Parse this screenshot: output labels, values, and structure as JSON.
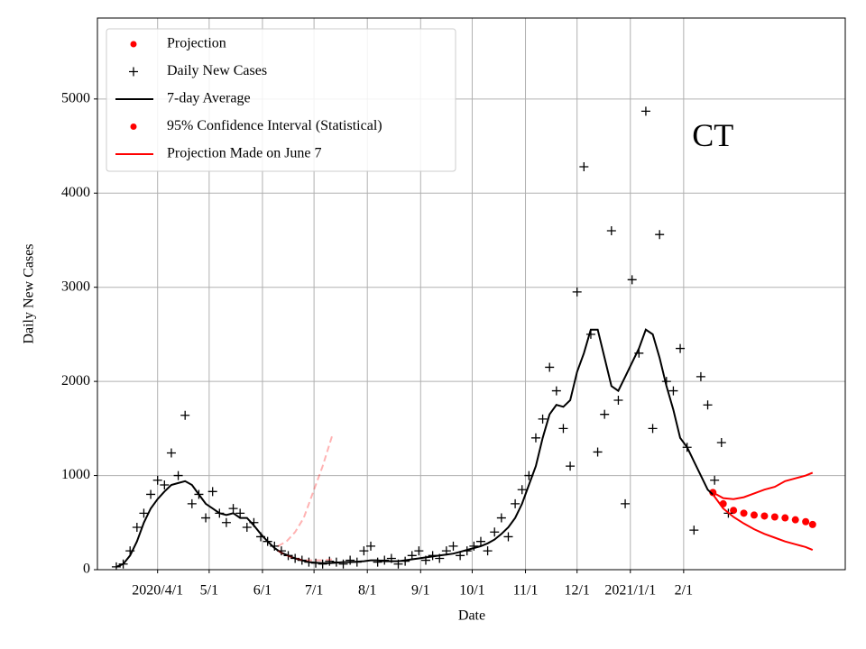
{
  "chart_data": {
    "type": "line",
    "xlabel": "Date",
    "ylabel": "Daily New Cases",
    "annotation": {
      "text": "CT",
      "x": "2021-02-18",
      "y": 4580
    },
    "xlim": [
      "2020-02-26",
      "2021-05-06"
    ],
    "ylim": [
      0,
      5860
    ],
    "yticks": [
      0,
      1000,
      2000,
      3000,
      4000,
      5000
    ],
    "xticks": [
      {
        "value": "2020-04-01",
        "label": "2020/4/1"
      },
      {
        "value": "2020-05-01",
        "label": "5/1"
      },
      {
        "value": "2020-06-01",
        "label": "6/1"
      },
      {
        "value": "2020-07-01",
        "label": "7/1"
      },
      {
        "value": "2020-08-01",
        "label": "8/1"
      },
      {
        "value": "2020-09-01",
        "label": "9/1"
      },
      {
        "value": "2020-10-01",
        "label": "10/1"
      },
      {
        "value": "2020-11-01",
        "label": "11/1"
      },
      {
        "value": "2020-12-01",
        "label": "12/1"
      },
      {
        "value": "2021-01-01",
        "label": "2021/1/1"
      },
      {
        "value": "2021-02-01",
        "label": "2/1"
      }
    ],
    "grid": true,
    "legend": "upper left",
    "series": [
      {
        "name": "Projection",
        "color": "#ff0000",
        "marker": "dot",
        "x": [
          "2021-02-18",
          "2021-02-24",
          "2021-03-02",
          "2021-03-08",
          "2021-03-14",
          "2021-03-20",
          "2021-03-26",
          "2021-04-01",
          "2021-04-07",
          "2021-04-13",
          "2021-04-17"
        ],
        "values": [
          820,
          700,
          630,
          600,
          580,
          570,
          560,
          550,
          530,
          510,
          480
        ]
      },
      {
        "name": "Daily New Cases",
        "color": "#000000",
        "marker": "plus",
        "x": [
          "2020-03-08",
          "2020-03-12",
          "2020-03-16",
          "2020-03-20",
          "2020-03-24",
          "2020-03-28",
          "2020-04-01",
          "2020-04-05",
          "2020-04-09",
          "2020-04-13",
          "2020-04-17",
          "2020-04-21",
          "2020-04-25",
          "2020-04-29",
          "2020-05-03",
          "2020-05-07",
          "2020-05-11",
          "2020-05-15",
          "2020-05-19",
          "2020-05-23",
          "2020-05-27",
          "2020-05-31",
          "2020-06-04",
          "2020-06-08",
          "2020-06-12",
          "2020-06-16",
          "2020-06-20",
          "2020-06-24",
          "2020-06-28",
          "2020-07-02",
          "2020-07-06",
          "2020-07-10",
          "2020-07-14",
          "2020-07-18",
          "2020-07-22",
          "2020-07-26",
          "2020-07-30",
          "2020-08-03",
          "2020-08-07",
          "2020-08-11",
          "2020-08-15",
          "2020-08-19",
          "2020-08-23",
          "2020-08-27",
          "2020-08-31",
          "2020-09-04",
          "2020-09-08",
          "2020-09-12",
          "2020-09-16",
          "2020-09-20",
          "2020-09-24",
          "2020-09-28",
          "2020-10-02",
          "2020-10-06",
          "2020-10-10",
          "2020-10-14",
          "2020-10-18",
          "2020-10-22",
          "2020-10-26",
          "2020-10-30",
          "2020-11-03",
          "2020-11-07",
          "2020-11-11",
          "2020-11-15",
          "2020-11-19",
          "2020-11-23",
          "2020-11-27",
          "2020-12-01",
          "2020-12-05",
          "2020-12-09",
          "2020-12-13",
          "2020-12-17",
          "2020-12-21",
          "2020-12-25",
          "2020-12-29",
          "2021-01-02",
          "2021-01-06",
          "2021-01-10",
          "2021-01-14",
          "2021-01-18",
          "2021-01-22",
          "2021-01-26",
          "2021-01-30",
          "2021-02-03",
          "2021-02-07",
          "2021-02-11",
          "2021-02-15",
          "2021-02-19",
          "2021-02-23",
          "2021-02-27"
        ],
        "values": [
          30,
          60,
          200,
          450,
          600,
          800,
          950,
          900,
          1240,
          1000,
          1640,
          700,
          800,
          550,
          830,
          600,
          500,
          650,
          600,
          450,
          500,
          350,
          300,
          250,
          200,
          150,
          120,
          100,
          80,
          70,
          60,
          90,
          80,
          60,
          100,
          80,
          200,
          250,
          80,
          100,
          120,
          60,
          90,
          150,
          200,
          100,
          150,
          120,
          200,
          250,
          150,
          200,
          250,
          300,
          200,
          400,
          550,
          350,
          700,
          850,
          1000,
          1400,
          1600,
          2150,
          1900,
          1500,
          1100,
          2950,
          4280,
          2500,
          1250,
          1650,
          3600,
          1800,
          700,
          3080,
          2300,
          4870,
          1500,
          3560,
          2000,
          1900,
          2350,
          1300,
          420,
          2050,
          1750,
          950,
          1350,
          600
        ]
      },
      {
        "name": "7-day Average",
        "color": "#000000",
        "marker": "line",
        "x": [
          "2020-03-08",
          "2020-03-12",
          "2020-03-16",
          "2020-03-20",
          "2020-03-24",
          "2020-03-28",
          "2020-04-01",
          "2020-04-05",
          "2020-04-09",
          "2020-04-13",
          "2020-04-17",
          "2020-04-21",
          "2020-04-25",
          "2020-04-29",
          "2020-05-03",
          "2020-05-07",
          "2020-05-11",
          "2020-05-15",
          "2020-05-19",
          "2020-05-23",
          "2020-05-27",
          "2020-05-31",
          "2020-06-04",
          "2020-06-08",
          "2020-06-12",
          "2020-06-16",
          "2020-06-20",
          "2020-06-24",
          "2020-06-28",
          "2020-07-02",
          "2020-07-06",
          "2020-07-10",
          "2020-07-14",
          "2020-07-18",
          "2020-07-22",
          "2020-07-26",
          "2020-07-30",
          "2020-08-03",
          "2020-08-07",
          "2020-08-11",
          "2020-08-15",
          "2020-08-19",
          "2020-08-23",
          "2020-08-27",
          "2020-08-31",
          "2020-09-04",
          "2020-09-08",
          "2020-09-12",
          "2020-09-16",
          "2020-09-20",
          "2020-09-24",
          "2020-09-28",
          "2020-10-02",
          "2020-10-06",
          "2020-10-10",
          "2020-10-14",
          "2020-10-18",
          "2020-10-22",
          "2020-10-26",
          "2020-10-30",
          "2020-11-03",
          "2020-11-07",
          "2020-11-11",
          "2020-11-15",
          "2020-11-19",
          "2020-11-23",
          "2020-11-27",
          "2020-12-01",
          "2020-12-05",
          "2020-12-09",
          "2020-12-13",
          "2020-12-17",
          "2020-12-21",
          "2020-12-25",
          "2020-12-29",
          "2021-01-02",
          "2021-01-06",
          "2021-01-10",
          "2021-01-14",
          "2021-01-18",
          "2021-01-22",
          "2021-01-26",
          "2021-01-30",
          "2021-02-03",
          "2021-02-07",
          "2021-02-11",
          "2021-02-15",
          "2021-02-19"
        ],
        "values": [
          30,
          60,
          150,
          300,
          500,
          650,
          750,
          830,
          900,
          920,
          940,
          900,
          800,
          700,
          650,
          600,
          580,
          600,
          550,
          550,
          470,
          380,
          300,
          230,
          180,
          150,
          120,
          100,
          80,
          75,
          70,
          70,
          75,
          80,
          80,
          85,
          90,
          100,
          100,
          90,
          90,
          90,
          100,
          110,
          120,
          130,
          140,
          150,
          160,
          170,
          190,
          210,
          230,
          250,
          280,
          320,
          380,
          450,
          550,
          700,
          900,
          1100,
          1400,
          1650,
          1750,
          1730,
          1800,
          2100,
          2300,
          2550,
          2550,
          2250,
          1950,
          1900,
          2050,
          2200,
          2350,
          2550,
          2500,
          2250,
          1950,
          1700,
          1400,
          1300,
          1150,
          1000,
          850,
          780
        ]
      },
      {
        "name": "95% Confidence Interval (Statistical)",
        "color": "#ff0000",
        "marker": "dot",
        "x": [
          "2021-02-18",
          "2021-02-24",
          "2021-03-02",
          "2021-03-08",
          "2021-03-14",
          "2021-03-20",
          "2021-03-26",
          "2021-04-01",
          "2021-04-07",
          "2021-04-13",
          "2021-04-17"
        ],
        "lower": [
          800,
          650,
          560,
          490,
          430,
          380,
          340,
          300,
          270,
          240,
          210
        ],
        "upper": [
          820,
          760,
          750,
          770,
          810,
          850,
          880,
          940,
          970,
          1000,
          1030
        ]
      },
      {
        "name": "Projection Made on June 7",
        "color": "#ff0000",
        "marker": "line",
        "x": [
          "2020-06-10",
          "2020-06-15",
          "2020-06-20",
          "2020-06-25",
          "2020-06-30",
          "2020-07-06",
          "2020-07-12"
        ],
        "values": [
          200,
          150,
          120,
          100,
          100,
          100,
          110
        ],
        "upper": [
          250,
          300,
          400,
          550,
          800,
          1100,
          1450
        ]
      }
    ]
  }
}
